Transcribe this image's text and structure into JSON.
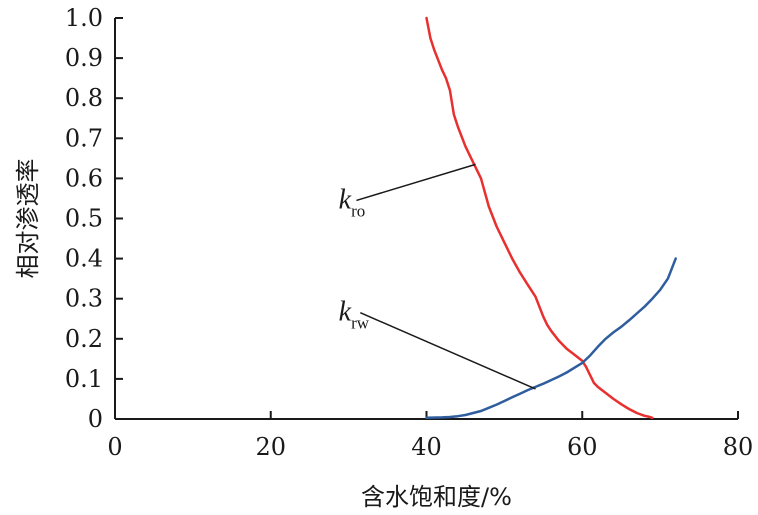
{
  "chart_data": {
    "type": "line",
    "title": "",
    "xlabel": "含水饱和度/%",
    "ylabel": "相对渗透率",
    "xlim": [
      0,
      80
    ],
    "ylim": [
      0,
      1.0
    ],
    "x_ticks": [
      0,
      20,
      40,
      60,
      80
    ],
    "x_tick_labels": [
      "0",
      "20",
      "40",
      "60",
      "80"
    ],
    "y_ticks": [
      0,
      0.1,
      0.2,
      0.3,
      0.4,
      0.5,
      0.6,
      0.7,
      0.8,
      0.9,
      1.0
    ],
    "y_tick_labels": [
      "0",
      "0.1",
      "0.2",
      "0.3",
      "0.4",
      "0.5",
      "0.6",
      "0.7",
      "0.8",
      "0.9",
      "1.0"
    ],
    "grid": false,
    "legend": "none",
    "series": [
      {
        "color": "#e8302f",
        "x": [
          40.0,
          40.5,
          41.0,
          42.0,
          42.5,
          43.0,
          43.5,
          44.0,
          45.0,
          46.0,
          46.5,
          47.0,
          48.0,
          49.0,
          50.0,
          51.0,
          52.0,
          53.0,
          54.0,
          54.5,
          55.0,
          55.5,
          56.0,
          57.0,
          58.0,
          59.0,
          60.0,
          60.5,
          61.0,
          61.5,
          62.0,
          63.0,
          64.0,
          65.0,
          66.0,
          67.0,
          68.0,
          68.5,
          69.0
        ],
        "y": [
          1.0,
          0.95,
          0.92,
          0.87,
          0.85,
          0.82,
          0.76,
          0.73,
          0.68,
          0.64,
          0.62,
          0.6,
          0.53,
          0.48,
          0.44,
          0.4,
          0.365,
          0.335,
          0.305,
          0.28,
          0.255,
          0.235,
          0.22,
          0.195,
          0.175,
          0.16,
          0.145,
          0.13,
          0.11,
          0.09,
          0.08,
          0.065,
          0.05,
          0.037,
          0.025,
          0.015,
          0.008,
          0.006,
          0.003
        ]
      },
      {
        "color": "#2f5d9e",
        "x": [
          40.0,
          42.0,
          43.0,
          44.0,
          45.0,
          46.0,
          47.0,
          48.0,
          49.0,
          50.0,
          51.0,
          52.0,
          53.0,
          54.0,
          55.0,
          56.0,
          57.0,
          58.0,
          59.0,
          60.0,
          61.0,
          62.0,
          63.0,
          64.0,
          65.0,
          66.0,
          67.0,
          68.0,
          69.0,
          70.0,
          71.0,
          72.0
        ],
        "y": [
          0.003,
          0.004,
          0.005,
          0.007,
          0.01,
          0.015,
          0.02,
          0.028,
          0.036,
          0.045,
          0.054,
          0.063,
          0.072,
          0.08,
          0.088,
          0.097,
          0.106,
          0.116,
          0.128,
          0.14,
          0.158,
          0.18,
          0.2,
          0.216,
          0.23,
          0.246,
          0.263,
          0.28,
          0.3,
          0.322,
          0.35,
          0.4
        ]
      }
    ],
    "annotations": [
      {
        "text": "k",
        "subscript": "ro",
        "label_x": 30.0,
        "label_y": 0.55,
        "line_from": [
          31.0,
          0.545
        ],
        "line_to": [
          46.3,
          0.635
        ]
      },
      {
        "text": "k",
        "subscript": "rw",
        "label_x": 30.0,
        "label_y": 0.27,
        "line_from": [
          31.5,
          0.265
        ],
        "line_to": [
          54.0,
          0.075
        ]
      }
    ]
  }
}
